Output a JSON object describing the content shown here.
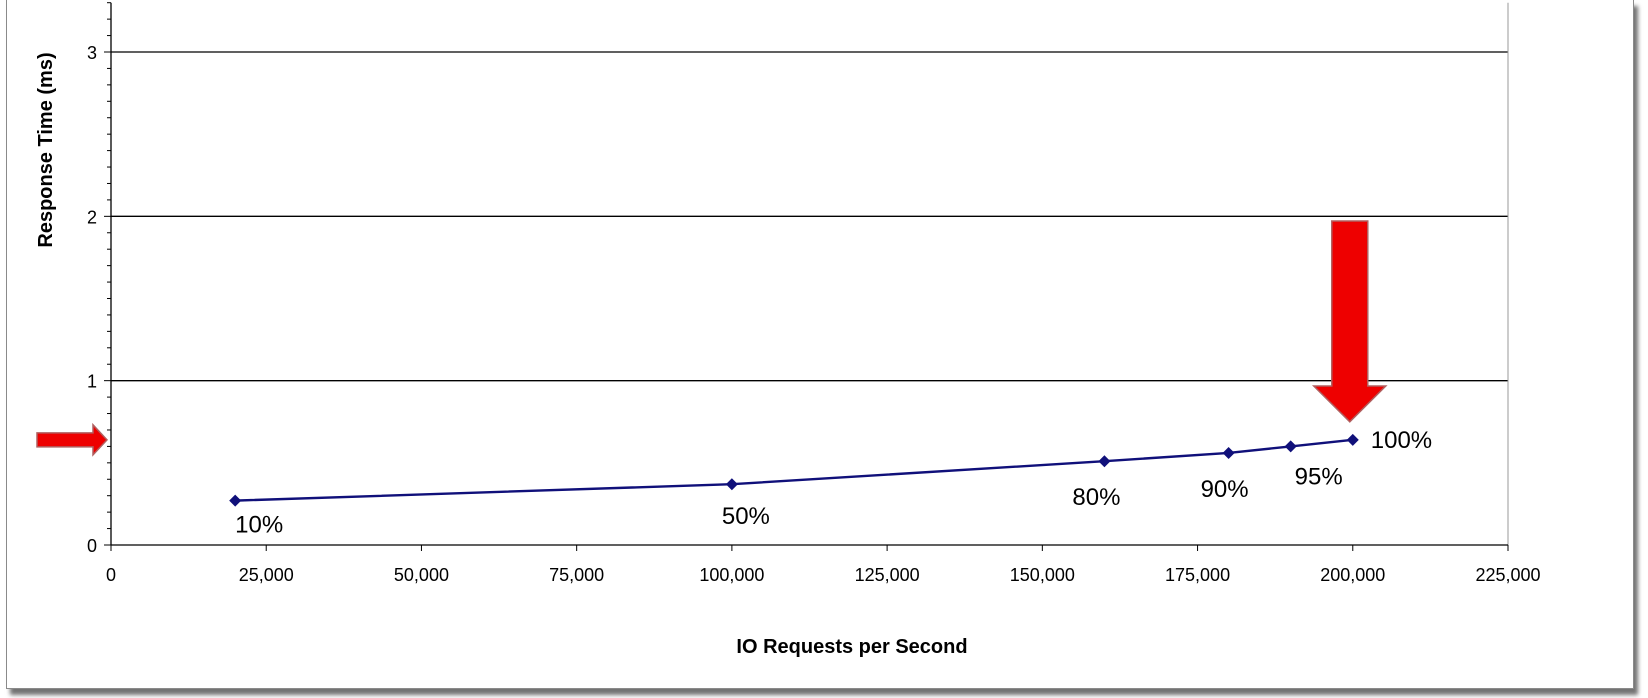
{
  "chart_data": {
    "type": "line",
    "title": "",
    "xlabel": "IO Requests  per Second",
    "ylabel": "Response  Time (ms)",
    "xlim": [
      0,
      225000
    ],
    "ylim": [
      0,
      3.3
    ],
    "x_ticks": [
      0,
      25000,
      50000,
      75000,
      100000,
      125000,
      150000,
      175000,
      200000,
      225000
    ],
    "x_tick_labels": [
      "0",
      "25,000",
      "50,000",
      "75,000",
      "100,000",
      "125,000",
      "150,000",
      "175,000",
      "200,000",
      "225,000"
    ],
    "y_ticks": [
      0,
      1,
      2,
      3
    ],
    "y_tick_labels": [
      "0",
      "1",
      "2",
      "3"
    ],
    "grid": "horizontal major gridlines at 1, 2, 3",
    "series": [
      {
        "color": "#10107a",
        "marker": "diamond",
        "x": [
          20000,
          100000,
          160000,
          180000,
          190000,
          200000
        ],
        "y": [
          0.27,
          0.37,
          0.51,
          0.56,
          0.6,
          0.64
        ],
        "point_labels": [
          "10%",
          "50%",
          "80%",
          "90%",
          "95%",
          "100%"
        ]
      }
    ],
    "annotations": [
      {
        "type": "arrow",
        "direction": "right",
        "color": "#ee0000",
        "points_to": "y axis at 0.64 ms"
      },
      {
        "type": "arrow",
        "direction": "down",
        "color": "#ee0000",
        "points_to": "100% point"
      }
    ]
  }
}
